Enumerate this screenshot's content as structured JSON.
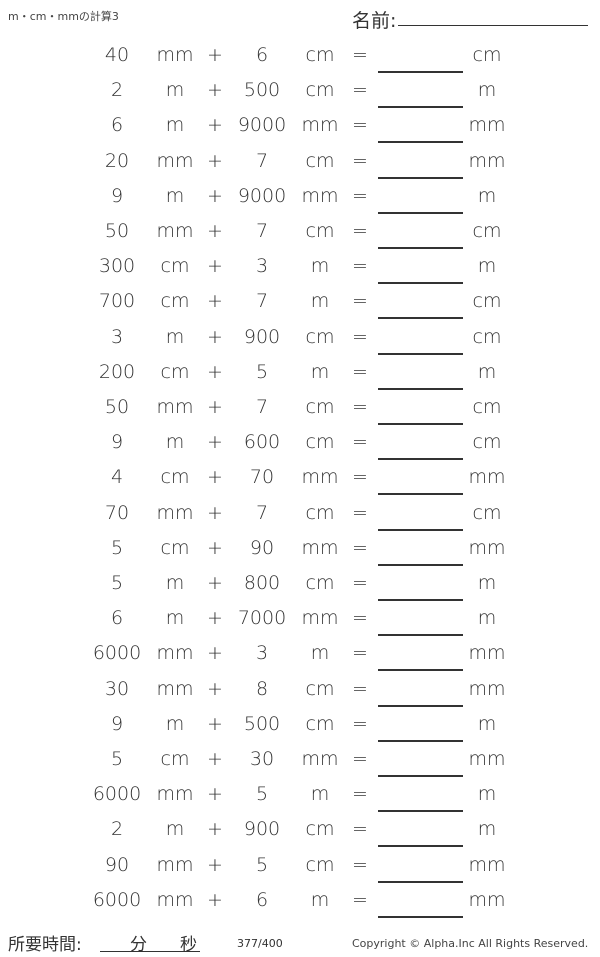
{
  "header": {
    "title": "m・cm・mmの計算3",
    "name_label": "名前:"
  },
  "operator": "+",
  "equals": "=",
  "rows": [
    {
      "a": "40",
      "ua": "mm",
      "b": "6",
      "ub": "cm",
      "ur": "cm"
    },
    {
      "a": "2",
      "ua": "m",
      "b": "500",
      "ub": "cm",
      "ur": "m"
    },
    {
      "a": "6",
      "ua": "m",
      "b": "9000",
      "ub": "mm",
      "ur": "mm"
    },
    {
      "a": "20",
      "ua": "mm",
      "b": "7",
      "ub": "cm",
      "ur": "mm"
    },
    {
      "a": "9",
      "ua": "m",
      "b": "9000",
      "ub": "mm",
      "ur": "m"
    },
    {
      "a": "50",
      "ua": "mm",
      "b": "7",
      "ub": "cm",
      "ur": "cm"
    },
    {
      "a": "300",
      "ua": "cm",
      "b": "3",
      "ub": "m",
      "ur": "m"
    },
    {
      "a": "700",
      "ua": "cm",
      "b": "7",
      "ub": "m",
      "ur": "cm"
    },
    {
      "a": "3",
      "ua": "m",
      "b": "900",
      "ub": "cm",
      "ur": "cm"
    },
    {
      "a": "200",
      "ua": "cm",
      "b": "5",
      "ub": "m",
      "ur": "m"
    },
    {
      "a": "50",
      "ua": "mm",
      "b": "7",
      "ub": "cm",
      "ur": "cm"
    },
    {
      "a": "9",
      "ua": "m",
      "b": "600",
      "ub": "cm",
      "ur": "cm"
    },
    {
      "a": "4",
      "ua": "cm",
      "b": "70",
      "ub": "mm",
      "ur": "mm"
    },
    {
      "a": "70",
      "ua": "mm",
      "b": "7",
      "ub": "cm",
      "ur": "cm"
    },
    {
      "a": "5",
      "ua": "cm",
      "b": "90",
      "ub": "mm",
      "ur": "mm"
    },
    {
      "a": "5",
      "ua": "m",
      "b": "800",
      "ub": "cm",
      "ur": "m"
    },
    {
      "a": "6",
      "ua": "m",
      "b": "7000",
      "ub": "mm",
      "ur": "m"
    },
    {
      "a": "6000",
      "ua": "mm",
      "b": "3",
      "ub": "m",
      "ur": "mm"
    },
    {
      "a": "30",
      "ua": "mm",
      "b": "8",
      "ub": "cm",
      "ur": "mm"
    },
    {
      "a": "9",
      "ua": "m",
      "b": "500",
      "ub": "cm",
      "ur": "m"
    },
    {
      "a": "5",
      "ua": "cm",
      "b": "30",
      "ub": "mm",
      "ur": "mm"
    },
    {
      "a": "6000",
      "ua": "mm",
      "b": "5",
      "ub": "m",
      "ur": "m"
    },
    {
      "a": "2",
      "ua": "m",
      "b": "900",
      "ub": "cm",
      "ur": "m"
    },
    {
      "a": "90",
      "ua": "mm",
      "b": "5",
      "ub": "cm",
      "ur": "mm"
    },
    {
      "a": "6000",
      "ua": "mm",
      "b": "6",
      "ub": "m",
      "ur": "mm"
    }
  ],
  "footer": {
    "time_label": "所要時間:",
    "minutes": "分",
    "seconds": "秒",
    "page": "377/400",
    "copyright": "Copyright © Alpha.Inc All Rights Reserved."
  }
}
